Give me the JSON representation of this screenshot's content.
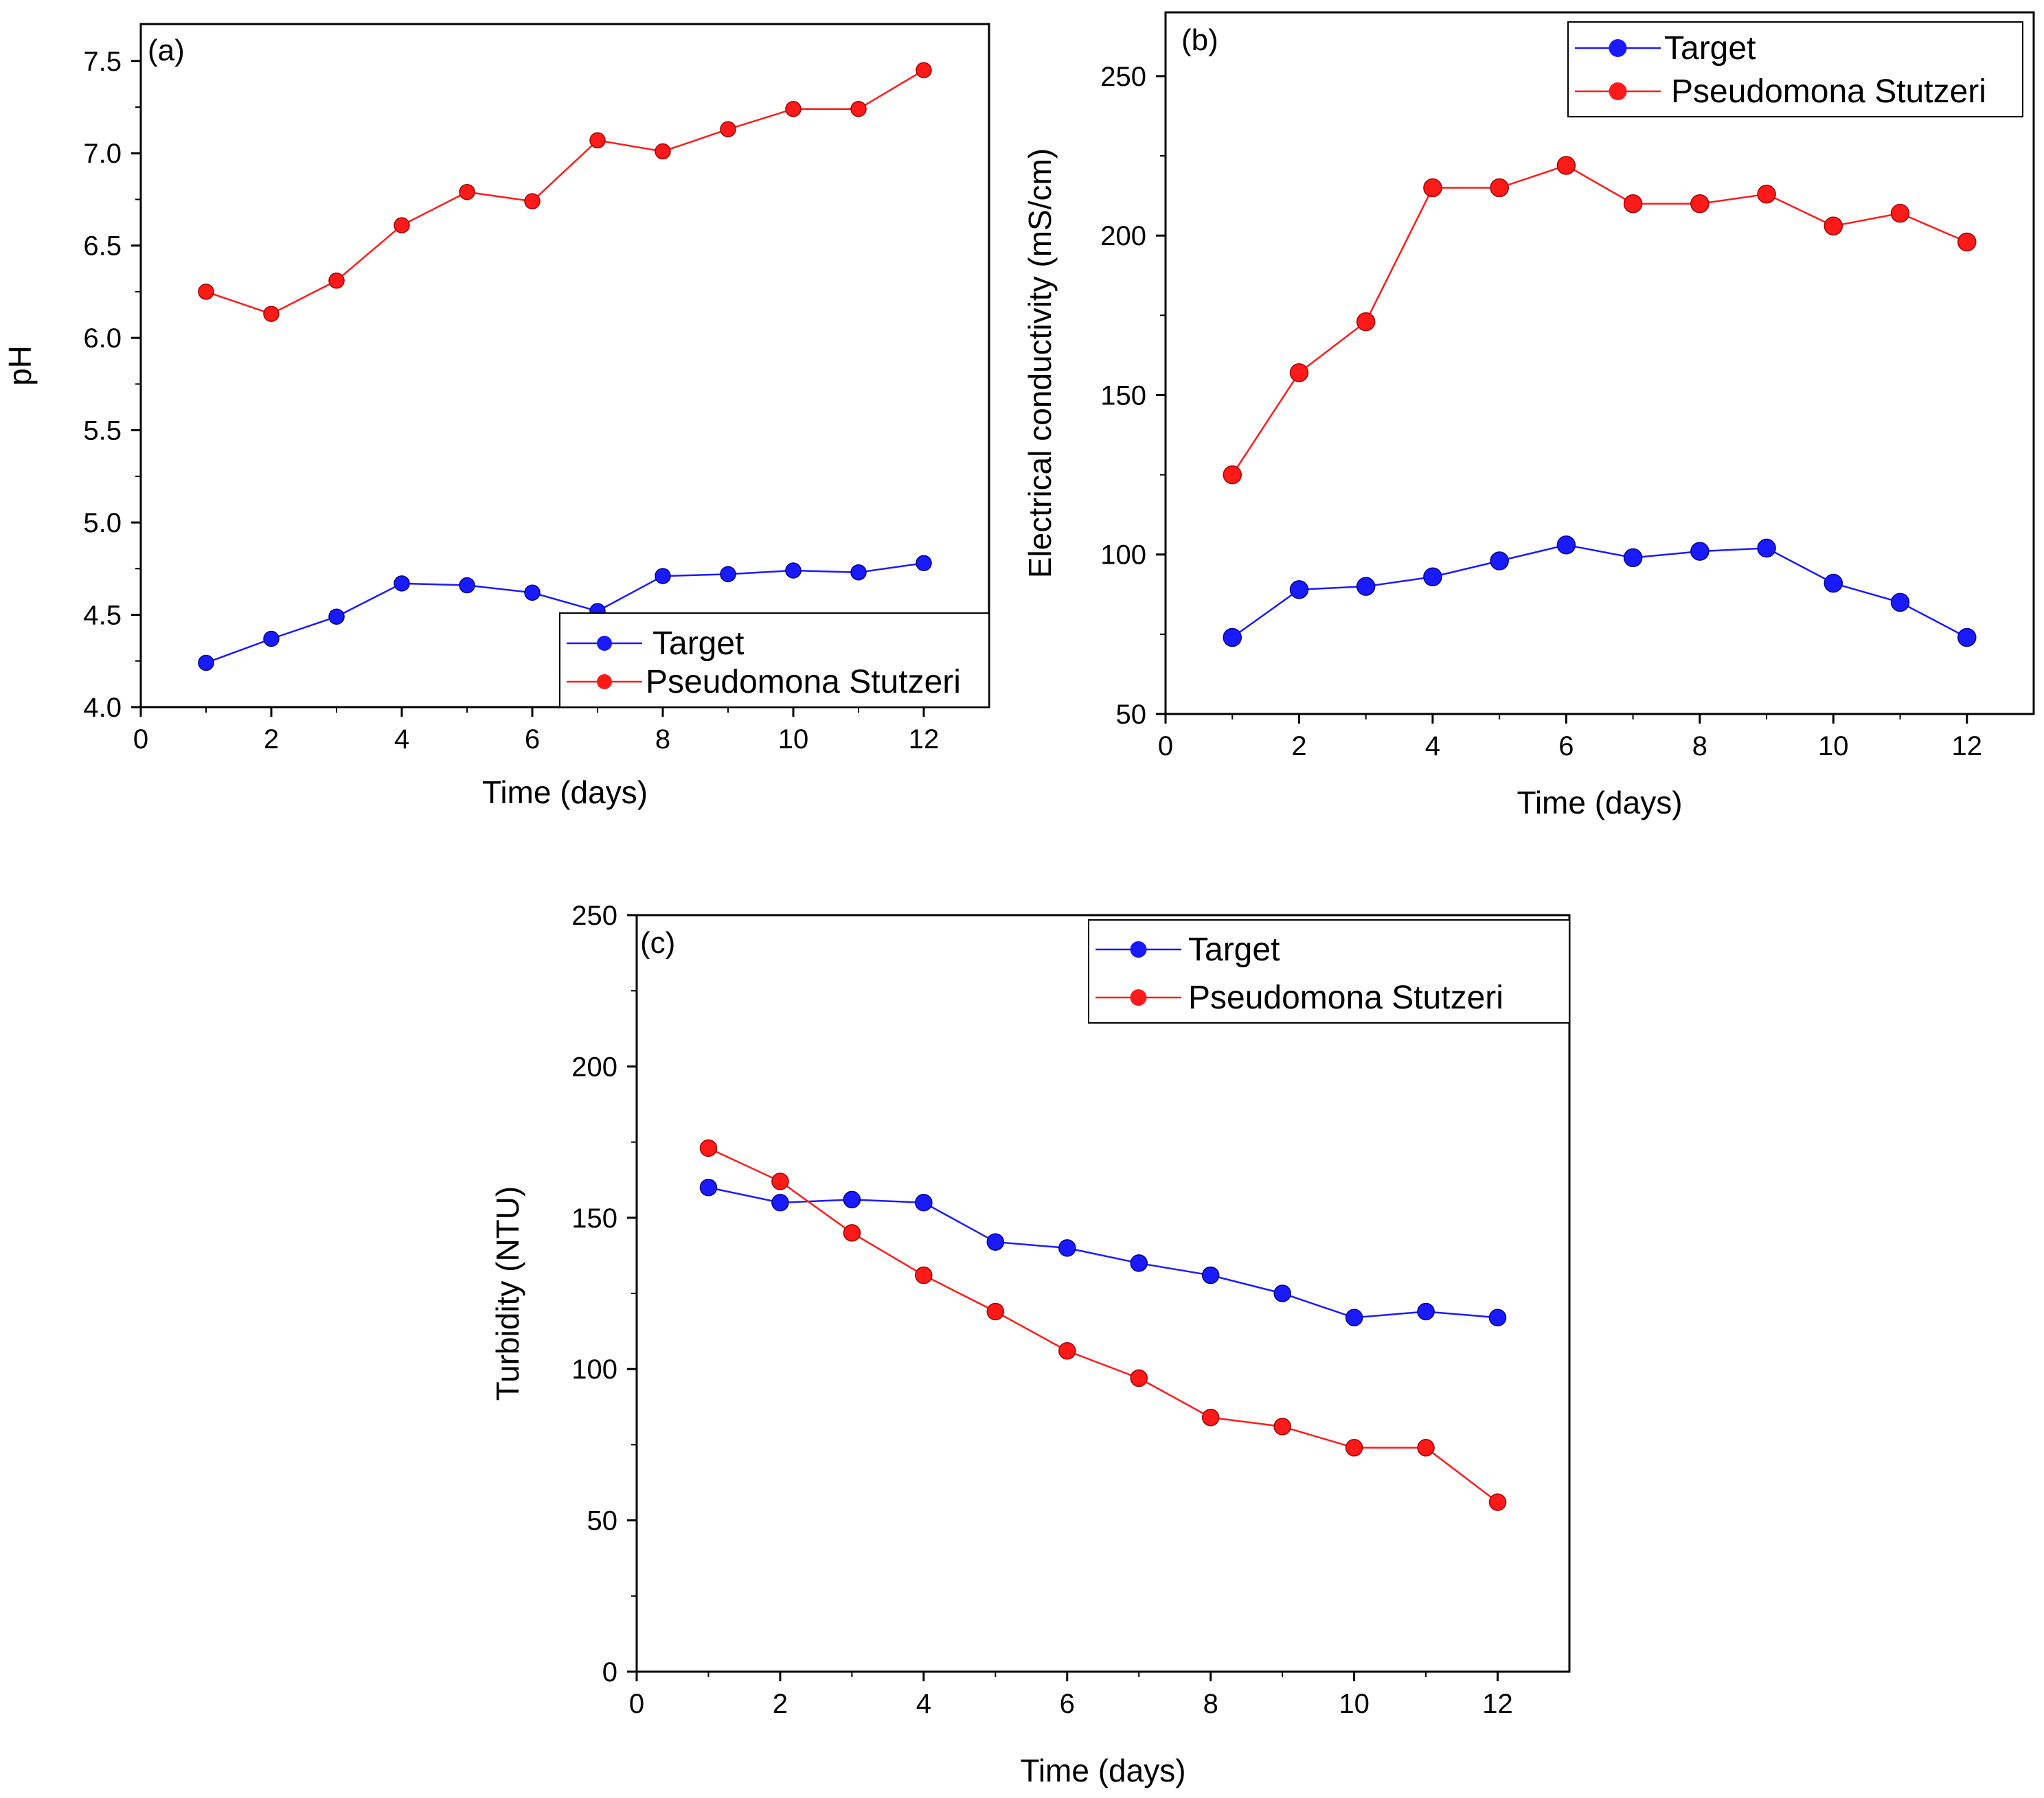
{
  "chart_data": [
    {
      "type": "line",
      "panel": "(a)",
      "title": "",
      "xlabel": "Time (days)",
      "ylabel": "pH",
      "xlim": [
        0,
        13
      ],
      "ylim": [
        4.0,
        7.7
      ],
      "xticks": [
        0,
        2,
        4,
        6,
        8,
        10,
        12
      ],
      "yticks": [
        4.0,
        4.5,
        5.0,
        5.5,
        6.0,
        6.5,
        7.0,
        7.5
      ],
      "xtick_labels": [
        "0",
        "2",
        "4",
        "6",
        "8",
        "10",
        "12"
      ],
      "ytick_labels": [
        "4.0",
        "4.5",
        "5.0",
        "5.5",
        "6.0",
        "6.5",
        "7.0",
        "7.5"
      ],
      "legend_position": "bottom-right",
      "x": [
        1,
        2,
        3,
        4,
        5,
        6,
        7,
        8,
        9,
        10,
        11,
        12
      ],
      "series": [
        {
          "name": "Target",
          "color": "#1a1aff",
          "values": [
            4.24,
            4.37,
            4.49,
            4.67,
            4.66,
            4.62,
            4.52,
            4.71,
            4.72,
            4.74,
            4.73,
            4.78
          ]
        },
        {
          "name": "Pseudomona Stutzeri",
          "color": "#ff1a1a",
          "values": [
            6.25,
            6.13,
            6.31,
            6.61,
            6.79,
            6.74,
            7.07,
            7.01,
            7.13,
            7.24,
            7.24,
            7.45
          ]
        }
      ]
    },
    {
      "type": "line",
      "panel": "(b)",
      "title": "",
      "xlabel": "Time (days)",
      "ylabel": "Electrical conductivity (mS/cm)",
      "xlim": [
        0,
        13
      ],
      "ylim": [
        50,
        270
      ],
      "xticks": [
        0,
        2,
        4,
        6,
        8,
        10,
        12
      ],
      "yticks": [
        50,
        100,
        150,
        200,
        250
      ],
      "xtick_labels": [
        "0",
        "2",
        "4",
        "6",
        "8",
        "10",
        "12"
      ],
      "ytick_labels": [
        "50",
        "100",
        "150",
        "200",
        "250"
      ],
      "legend_position": "top-right",
      "x": [
        1,
        2,
        3,
        4,
        5,
        6,
        7,
        8,
        9,
        10,
        11,
        12
      ],
      "series": [
        {
          "name": "Target",
          "color": "#1a1aff",
          "values": [
            74,
            89,
            90,
            93,
            98,
            103,
            99,
            101,
            102,
            91,
            85,
            74
          ]
        },
        {
          "name": "Pseudomona Stutzeri",
          "color": "#ff1a1a",
          "values": [
            125,
            157,
            173,
            215,
            215,
            222,
            210,
            210,
            213,
            203,
            207,
            198
          ]
        }
      ]
    },
    {
      "type": "line",
      "panel": "(c)",
      "title": "",
      "xlabel": "Time (days)",
      "ylabel": "Turbidity (NTU)",
      "xlim": [
        0,
        13
      ],
      "ylim": [
        0,
        250
      ],
      "xticks": [
        0,
        2,
        4,
        6,
        8,
        10,
        12
      ],
      "yticks": [
        0,
        50,
        100,
        150,
        200,
        250
      ],
      "xtick_labels": [
        "0",
        "2",
        "4",
        "6",
        "8",
        "10",
        "12"
      ],
      "ytick_labels": [
        "0",
        "50",
        "100",
        "150",
        "200",
        "250"
      ],
      "legend_position": "top-right",
      "x": [
        1,
        2,
        3,
        4,
        5,
        6,
        7,
        8,
        9,
        10,
        11,
        12
      ],
      "series": [
        {
          "name": "Target",
          "color": "#1a1aff",
          "values": [
            160,
            155,
            156,
            155,
            142,
            140,
            135,
            131,
            125,
            117,
            119,
            117
          ]
        },
        {
          "name": "Pseudomona Stutzeri",
          "color": "#ff1a1a",
          "values": [
            173,
            162,
            145,
            131,
            119,
            106,
            97,
            84,
            81,
            74,
            74,
            56
          ]
        }
      ]
    }
  ]
}
